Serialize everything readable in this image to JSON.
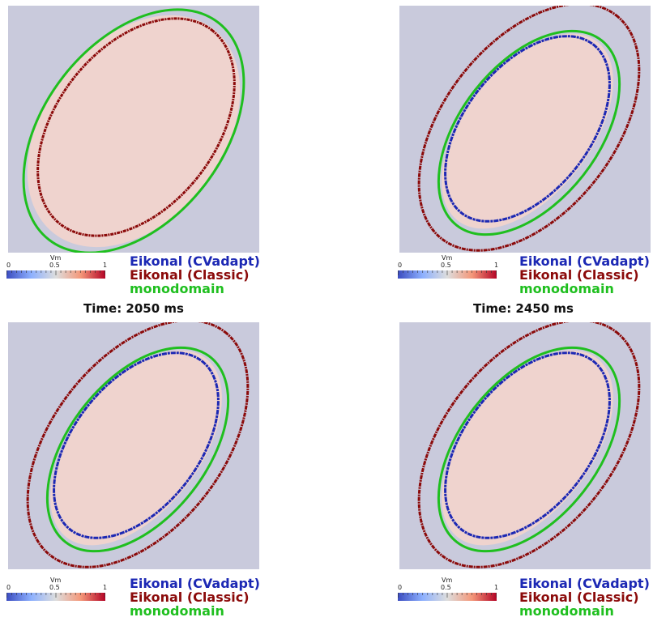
{
  "panels": [
    {
      "time_label": "",
      "shows_blue_contour": false,
      "legend": [
        "Eikonal (CVadapt)",
        "Eikonal (Classic)",
        "monodomain"
      ],
      "colorbar": {
        "title": "Vm",
        "ticks": [
          "0",
          "0.5",
          "1"
        ]
      }
    },
    {
      "time_label": "",
      "shows_blue_contour": true,
      "legend": [
        "Eikonal (CVadapt)",
        "Eikonal (Classic)",
        "monodomain"
      ],
      "colorbar": {
        "title": "Vm",
        "ticks": [
          "0",
          "0.5",
          "1"
        ]
      }
    },
    {
      "time_label": "Time: 2050 ms",
      "shows_blue_contour": true,
      "legend": [
        "Eikonal (CVadapt)",
        "Eikonal (Classic)",
        "monodomain"
      ],
      "colorbar": {
        "title": "Vm",
        "ticks": [
          "0",
          "0.5",
          "1"
        ]
      }
    },
    {
      "time_label": "Time: 2450 ms",
      "shows_blue_contour": true,
      "legend": [
        "Eikonal (CVadapt)",
        "Eikonal (Classic)",
        "monodomain"
      ],
      "colorbar": {
        "title": "Vm",
        "ticks": [
          "0",
          "0.5",
          "1"
        ]
      }
    }
  ],
  "colors": {
    "background": "#c9cadc",
    "tissue": "#efd3ce",
    "cvadapt": "#1c28b4",
    "classic": "#8b0a0a",
    "monodomain": "#1fbf1f"
  }
}
